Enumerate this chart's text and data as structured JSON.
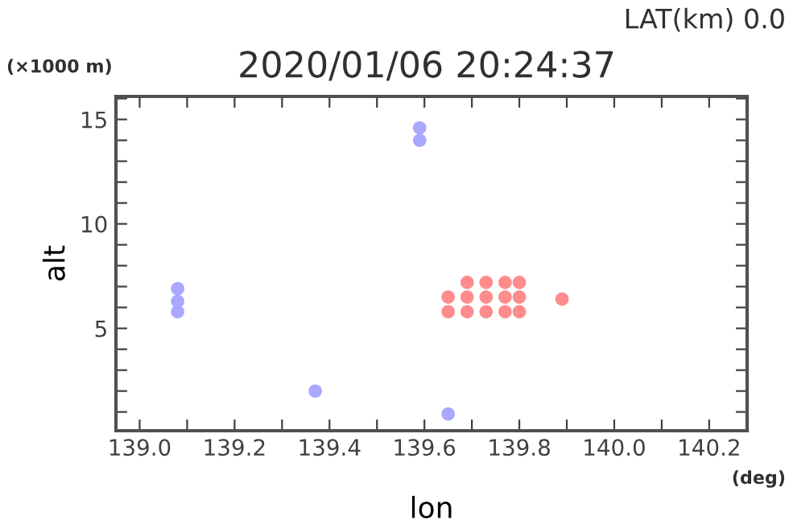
{
  "chart_data": {
    "type": "scatter",
    "title": "2020/01/06 20:24:37",
    "subtitle": "LAT(km) 0.0",
    "xlabel": "lon",
    "ylabel": "alt",
    "annotations": [
      "(×1000 m)",
      "(deg)"
    ],
    "marker": "circle",
    "grid": false,
    "legend": false,
    "xlim": [
      138.95,
      140.28
    ],
    "ylim": [
      0.1,
      16.1
    ],
    "xticks": [
      {
        "value": 139.0,
        "label": "139.0"
      },
      {
        "value": 139.1,
        "label": null
      },
      {
        "value": 139.2,
        "label": "139.2"
      },
      {
        "value": 139.3,
        "label": null
      },
      {
        "value": 139.4,
        "label": "139.4"
      },
      {
        "value": 139.5,
        "label": null
      },
      {
        "value": 139.6,
        "label": "139.6"
      },
      {
        "value": 139.7,
        "label": null
      },
      {
        "value": 139.8,
        "label": "139.8"
      },
      {
        "value": 139.9,
        "label": null
      },
      {
        "value": 140.0,
        "label": "140.0"
      },
      {
        "value": 140.1,
        "label": null
      },
      {
        "value": 140.2,
        "label": "140.2"
      }
    ],
    "yticks": [
      {
        "value": 1,
        "label": null
      },
      {
        "value": 2,
        "label": null
      },
      {
        "value": 3,
        "label": null
      },
      {
        "value": 4,
        "label": null
      },
      5,
      {
        "value": 6,
        "label": null
      },
      {
        "value": 7,
        "label": null
      },
      {
        "value": 8,
        "label": null
      },
      {
        "value": 9,
        "label": null
      },
      10,
      {
        "value": 11,
        "label": null
      },
      {
        "value": 12,
        "label": null
      },
      {
        "value": 13,
        "label": null
      },
      {
        "value": 14,
        "label": null
      },
      15,
      {
        "value": 16,
        "label": null
      }
    ],
    "series": [
      {
        "color": "#a8a8ff",
        "x": [
          139.08,
          139.08,
          139.08,
          139.37,
          139.59,
          139.59,
          139.65
        ],
        "values": [
          5.8,
          6.3,
          6.9,
          2.0,
          14.0,
          14.6,
          0.9
        ]
      },
      {
        "color": "#ff8c8c",
        "x": [
          139.65,
          139.69,
          139.73,
          139.77,
          139.8,
          139.65,
          139.69,
          139.73,
          139.77,
          139.8,
          139.69,
          139.73,
          139.77,
          139.8,
          139.89
        ],
        "values": [
          5.8,
          5.8,
          5.8,
          5.8,
          5.8,
          6.5,
          6.5,
          6.5,
          6.5,
          6.5,
          7.2,
          7.2,
          7.2,
          7.2,
          6.4
        ]
      }
    ]
  }
}
